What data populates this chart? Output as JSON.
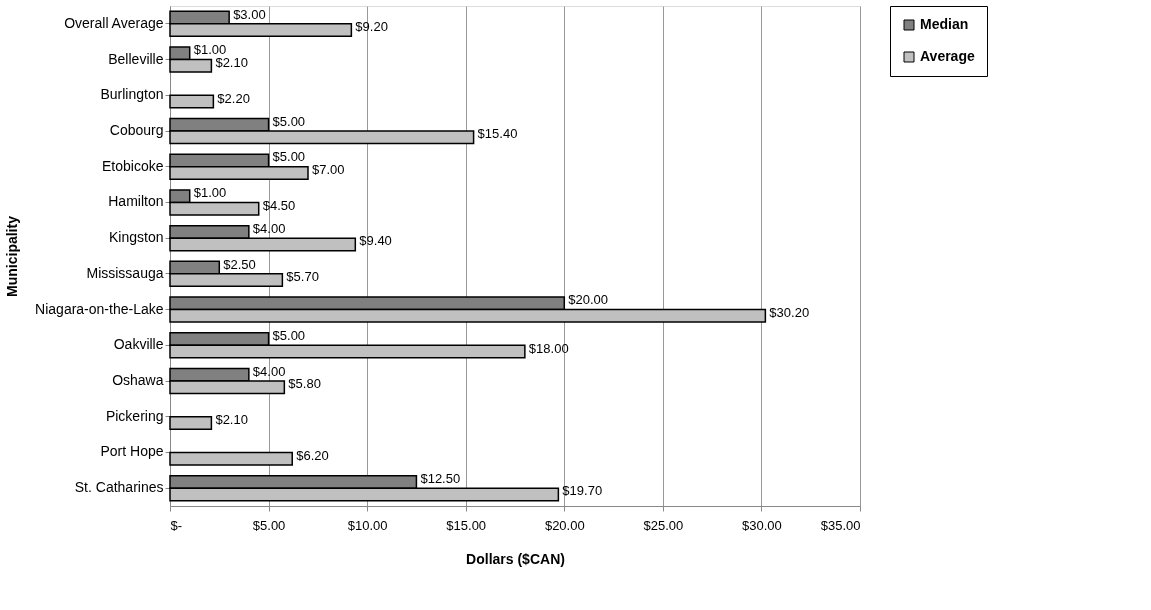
{
  "chart_data": {
    "type": "bar",
    "orientation": "horizontal",
    "xlabel": "Dollars ($CAN)",
    "ylabel": "Municipality",
    "categories": [
      "Overall Average",
      "Belleville",
      "Burlington",
      "Cobourg",
      "Etobicoke",
      "Hamilton",
      "Kingston",
      "Mississauga",
      "Niagara-on-the-Lake",
      "Oakville",
      "Oshawa",
      "Pickering",
      "Port Hope",
      "St. Catharines"
    ],
    "series": [
      {
        "name": "Median",
        "color": "#808080",
        "values": [
          3,
          1,
          null,
          5,
          5,
          1,
          4,
          2.5,
          20,
          5,
          4,
          null,
          null,
          12.5
        ],
        "value_labels": [
          "$3.00",
          "$1.00",
          null,
          "$5.00",
          "$5.00",
          "$1.00",
          "$4.00",
          "$2.50",
          "$20.00",
          "$5.00",
          "$4.00",
          null,
          null,
          "$12.50"
        ]
      },
      {
        "name": "Average",
        "color": "#c0c0c0",
        "values": [
          9.2,
          2.1,
          2.2,
          15.4,
          7.0,
          4.5,
          9.4,
          5.7,
          30.2,
          18.0,
          5.8,
          2.1,
          6.2,
          19.7
        ],
        "value_labels": [
          "$9.20",
          "$2.10",
          "$2.20",
          "$15.40",
          "$7.00",
          "$4.50",
          "$9.40",
          "$5.70",
          "$30.20",
          "$18.00",
          "$5.80",
          "$2.10",
          "$6.20",
          "$19.70"
        ]
      }
    ],
    "xlim": [
      0,
      35
    ],
    "xticks": [
      {
        "value": 0,
        "label": "$-"
      },
      {
        "value": 5,
        "label": "$5.00"
      },
      {
        "value": 10,
        "label": "$10.00"
      },
      {
        "value": 15,
        "label": "$15.00"
      },
      {
        "value": 20,
        "label": "$20.00"
      },
      {
        "value": 25,
        "label": "$25.00"
      },
      {
        "value": 30,
        "label": "$30.00"
      },
      {
        "value": 35,
        "label": "$35.00"
      }
    ],
    "grid": "x",
    "legend": "right"
  }
}
